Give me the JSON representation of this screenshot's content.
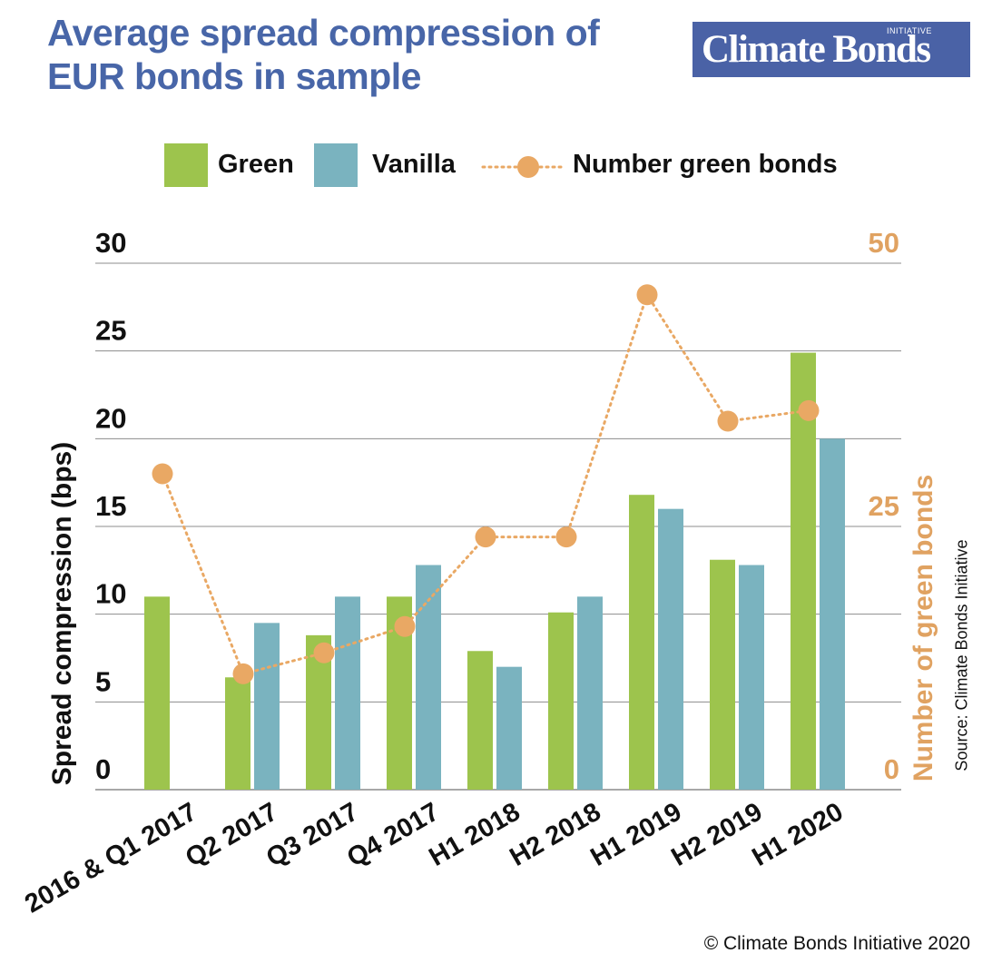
{
  "title": "Average spread compression of EUR bonds in sample",
  "logo": {
    "text": "Climate Bonds",
    "superscript": "INITIATIVE",
    "bg_color": "#4a62a6"
  },
  "legend": {
    "green": "Green",
    "vanilla": "Vanilla",
    "count": "Number green bonds"
  },
  "source": "Source: Climate Bonds Initiative",
  "copyright": "© Climate Bonds Initiative 2020",
  "colors": {
    "green": "#9dc44d",
    "vanilla": "#7ab3bf",
    "count": "#e9a864",
    "axis_right": "#e0a261",
    "grid": "#8c8c8c"
  },
  "chart_data": {
    "type": "bar",
    "categories": [
      "2016 & Q1 2017",
      "Q2 2017",
      "Q3 2017",
      "Q4 2017",
      "H1 2018",
      "H2 2018",
      "H1 2019",
      "H2 2019",
      "H1 2020"
    ],
    "series": [
      {
        "name": "Green",
        "axis": "left",
        "type": "bar",
        "values": [
          11,
          6.4,
          8.8,
          11,
          7.9,
          10.1,
          16.8,
          13.1,
          24.9
        ]
      },
      {
        "name": "Vanilla",
        "axis": "left",
        "type": "bar",
        "values": [
          null,
          9.5,
          11,
          12.8,
          7,
          11,
          16,
          12.8,
          20
        ]
      },
      {
        "name": "Number green bonds",
        "axis": "right",
        "type": "line",
        "values": [
          30,
          11,
          13,
          15.5,
          24,
          24,
          47,
          35,
          36
        ]
      }
    ],
    "ylabel": "Spread compression (bps)",
    "y2label": "Number of green bonds",
    "ylim": [
      0,
      30
    ],
    "y2lim": [
      0,
      50
    ],
    "yticks": [
      0,
      5,
      10,
      15,
      20,
      25,
      30
    ],
    "y2ticks": [
      0,
      25,
      50
    ],
    "grid": true,
    "legend_position": "top"
  }
}
